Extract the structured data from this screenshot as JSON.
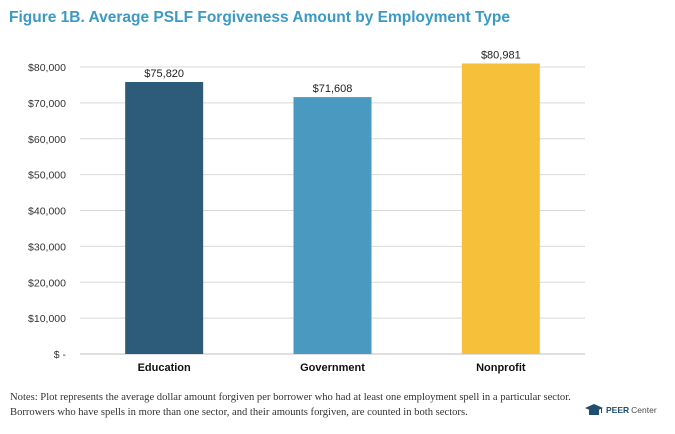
{
  "title": "Figure 1B. Average PSLF Forgiveness Amount by Employment Type",
  "notes": "Notes: Plot represents the average dollar amount forgiven per borrower who had at least one employment spell in a particular sector. Borrowers who have spells in more than one sector, and their amounts forgiven, are counted in both sectors.",
  "logo": {
    "bold": "PEER",
    "light": "Center"
  },
  "chart_data": {
    "type": "bar",
    "title": "Figure 1B. Average PSLF Forgiveness Amount by Employment Type",
    "xlabel": "",
    "ylabel": "",
    "categories": [
      "Education",
      "Government",
      "Nonprofit"
    ],
    "values": [
      75820,
      71608,
      80981
    ],
    "data_labels": [
      "$75,820",
      "$71,608",
      "$80,981"
    ],
    "bar_colors": [
      "#2d5b7a",
      "#4a99c1",
      "#f7c03b"
    ],
    "ylim": [
      0,
      80000
    ],
    "yticks": [
      0,
      10000,
      20000,
      30000,
      40000,
      50000,
      60000,
      70000,
      80000
    ],
    "ytick_labels": [
      "$ -",
      "$10,000",
      "$20,000",
      "$30,000",
      "$40,000",
      "$50,000",
      "$60,000",
      "$70,000",
      "$80,000"
    ],
    "grid": true,
    "legend": "none"
  },
  "colors": {
    "title": "#3a9ac4",
    "grid": "#d9d9d9",
    "axis": "#bfbfbf"
  }
}
